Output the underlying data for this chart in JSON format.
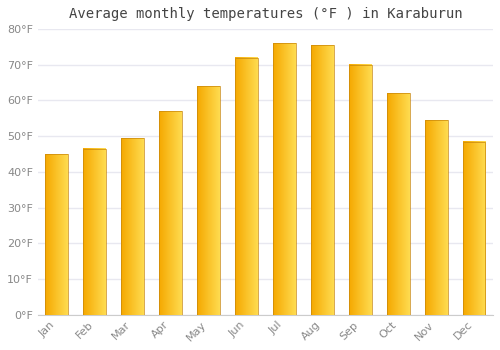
{
  "title": "Average monthly temperatures (°F ) in Karaburun",
  "months": [
    "Jan",
    "Feb",
    "Mar",
    "Apr",
    "May",
    "Jun",
    "Jul",
    "Aug",
    "Sep",
    "Oct",
    "Nov",
    "Dec"
  ],
  "values": [
    45,
    46.5,
    49.5,
    57,
    64,
    72,
    76,
    75.5,
    70,
    62,
    54.5,
    48.5
  ],
  "bar_color_left": "#F5A800",
  "bar_color_right": "#FFD966",
  "bar_edge_color": "#C8860A",
  "ylim": [
    0,
    80
  ],
  "yticks": [
    0,
    10,
    20,
    30,
    40,
    50,
    60,
    70,
    80
  ],
  "ytick_labels": [
    "0°F",
    "10°F",
    "20°F",
    "30°F",
    "40°F",
    "50°F",
    "60°F",
    "70°F",
    "80°F"
  ],
  "background_color": "#FFFFFF",
  "grid_color": "#E8E8F0",
  "title_fontsize": 10,
  "tick_fontsize": 8,
  "tick_color": "#888888",
  "title_color": "#444444"
}
